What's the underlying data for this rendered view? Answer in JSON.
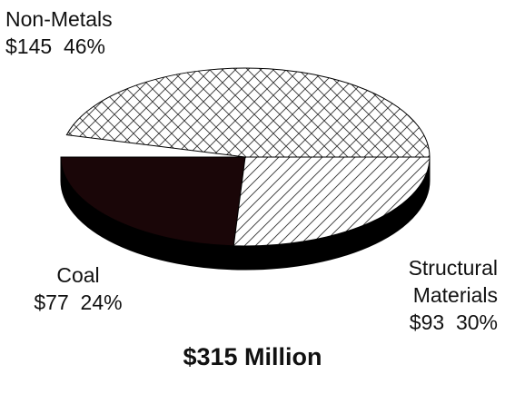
{
  "chart_data": {
    "type": "pie",
    "title": "",
    "total_label": "$315 Million",
    "slices": [
      {
        "name": "Non-Metals",
        "value_label": "$145",
        "value": 145,
        "percent": 46,
        "percent_label": "46%",
        "pattern": "crosshatch"
      },
      {
        "name": "Structural Materials",
        "name_lines": [
          "Structural",
          "Materials"
        ],
        "value_label": "$93",
        "value": 93,
        "percent": 30,
        "percent_label": "30%",
        "pattern": "diagonal-hatch"
      },
      {
        "name": "Coal",
        "value_label": "$77",
        "value": 77,
        "percent": 24,
        "percent_label": "24%",
        "pattern": "solid-dark"
      }
    ],
    "colors": {
      "coal": "#1a0608",
      "outline": "#000000",
      "hatch": "#333333"
    }
  }
}
